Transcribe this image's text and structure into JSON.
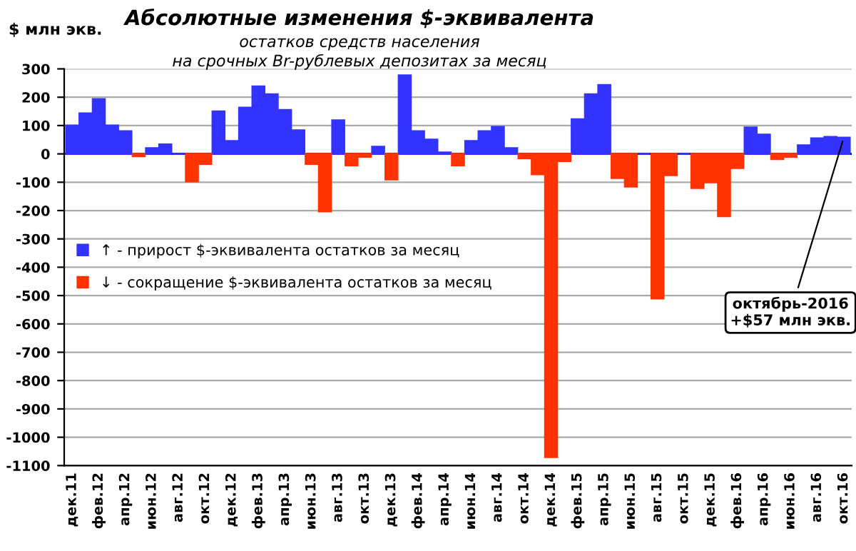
{
  "chart_data": {
    "type": "bar",
    "title": "Абсолютные изменения $-эквивалента",
    "subtitle": "остатков средств населения\nна срочных Br-рублевых депозитах за месяц",
    "ylabel": "$ млн экв.",
    "categories": [
      "дек.11",
      null,
      "фев.12",
      null,
      "апр.12",
      null,
      "июн.12",
      null,
      "авг.12",
      null,
      "окт.12",
      null,
      "дек.12",
      null,
      "фев.13",
      null,
      "апр.13",
      null,
      "июн.13",
      null,
      "авг.13",
      null,
      "окт.13",
      null,
      "дек.13",
      null,
      "фев.14",
      null,
      "апр.14",
      null,
      "июн.14",
      null,
      "авг.14",
      null,
      "окт.14",
      null,
      "дек.14",
      null,
      "фев.15",
      null,
      "апр.15",
      null,
      "июн.15",
      null,
      "авг.15",
      null,
      "окт.15",
      null,
      "дек.15",
      null,
      "фев.16",
      null,
      "апр.16",
      null,
      "июн.16",
      null,
      "авг.16",
      null,
      "окт.16"
    ],
    "series": [
      {
        "name": "↑ - прирост $-эквивалента остатков за месяц",
        "color": "#3333ff",
        "values": [
          100,
          143,
          193,
          100,
          80,
          null,
          20,
          33,
          0,
          null,
          null,
          150,
          45,
          163,
          238,
          210,
          155,
          83,
          null,
          null,
          118,
          null,
          null,
          25,
          null,
          277,
          80,
          50,
          5,
          null,
          45,
          80,
          95,
          20,
          null,
          null,
          null,
          null,
          122,
          210,
          243,
          null,
          null,
          0,
          null,
          null,
          0,
          null,
          null,
          null,
          null,
          93,
          68,
          null,
          null,
          30,
          55,
          60,
          57
        ]
      },
      {
        "name": "↓ - сокращение $-эквивалента остатков за месяц",
        "color": "#ff3300",
        "values": [
          null,
          null,
          null,
          null,
          null,
          -8,
          null,
          null,
          null,
          -97,
          -35,
          null,
          null,
          null,
          null,
          null,
          null,
          null,
          -35,
          -203,
          null,
          -40,
          -10,
          null,
          -90,
          null,
          null,
          null,
          null,
          -40,
          null,
          null,
          null,
          null,
          -15,
          -72,
          -1070,
          -25,
          null,
          null,
          null,
          -85,
          -115,
          null,
          -510,
          -75,
          null,
          -120,
          -100,
          -220,
          -50,
          null,
          null,
          -18,
          -10,
          null,
          null,
          null,
          null
        ]
      }
    ],
    "ylim": [
      -1100,
      300
    ],
    "yticks": [
      -1100,
      -1000,
      -900,
      -800,
      -700,
      -600,
      -500,
      -400,
      -300,
      -200,
      -100,
      0,
      100,
      200,
      300
    ],
    "grid": "y",
    "legend": "left",
    "annotations": [
      {
        "text": "октябрь-2016\n+$57 млн экв.",
        "x": "окт.16",
        "y": 57
      }
    ]
  }
}
